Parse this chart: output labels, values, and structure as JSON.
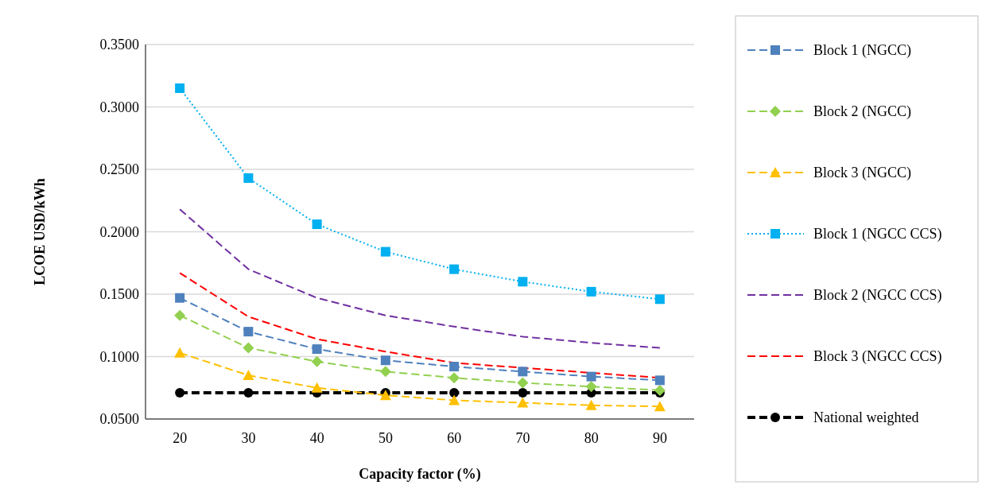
{
  "chart_data": {
    "type": "line",
    "xlabel": "Capacity factor (%)",
    "ylabel": "LCOE USD/kWh",
    "categories": [
      "20",
      "30",
      "40",
      "50",
      "60",
      "70",
      "80",
      "90"
    ],
    "ylim": [
      0.05,
      0.35
    ],
    "yticks": [
      {
        "value": 0.05,
        "label": "0.0500"
      },
      {
        "value": 0.1,
        "label": "0.1000"
      },
      {
        "value": 0.15,
        "label": "0.1500"
      },
      {
        "value": 0.2,
        "label": "0.2000"
      },
      {
        "value": 0.25,
        "label": "0.2500"
      },
      {
        "value": 0.3,
        "label": "0.3000"
      },
      {
        "value": 0.35,
        "label": "0.3500"
      }
    ],
    "grid": "y",
    "legend": "right",
    "series": [
      {
        "name": "Block 1 (NGCC)",
        "color": "#4f81bd",
        "marker": "square",
        "line_style": "dashed",
        "values": [
          0.147,
          0.12,
          0.106,
          0.097,
          0.092,
          0.088,
          0.084,
          0.081
        ]
      },
      {
        "name": "Block 2 (NGCC)",
        "color": "#92d050",
        "marker": "diamond",
        "line_style": "dashed",
        "values": [
          0.133,
          0.107,
          0.096,
          0.088,
          0.083,
          0.079,
          0.076,
          0.073
        ]
      },
      {
        "name": "Block 3 (NGCC)",
        "color": "#ffc000",
        "marker": "triangle",
        "line_style": "dashed",
        "values": [
          0.103,
          0.085,
          0.075,
          0.069,
          0.065,
          0.063,
          0.061,
          0.06
        ]
      },
      {
        "name": "Block 1 (NGCC CCS)",
        "color": "#00b0f0",
        "marker": "square",
        "line_style": "dotted",
        "values": [
          0.315,
          0.243,
          0.206,
          0.184,
          0.17,
          0.16,
          0.152,
          0.146
        ]
      },
      {
        "name": "Block 2 (NGCC CCS)",
        "color": "#7030a0",
        "marker": "none",
        "line_style": "dashed",
        "values": [
          0.218,
          0.17,
          0.147,
          0.133,
          0.124,
          0.116,
          0.111,
          0.107
        ]
      },
      {
        "name": "Block 3 (NGCC CCS)",
        "color": "#ff0000",
        "marker": "none",
        "line_style": "dashed",
        "values": [
          0.167,
          0.132,
          0.114,
          0.104,
          0.095,
          0.091,
          0.087,
          0.083
        ]
      },
      {
        "name": "National weighted",
        "color": "#000000",
        "marker": "circle",
        "line_style": "dashed",
        "values": [
          0.071,
          0.071,
          0.071,
          0.071,
          0.071,
          0.071,
          0.071,
          0.071
        ]
      }
    ]
  }
}
